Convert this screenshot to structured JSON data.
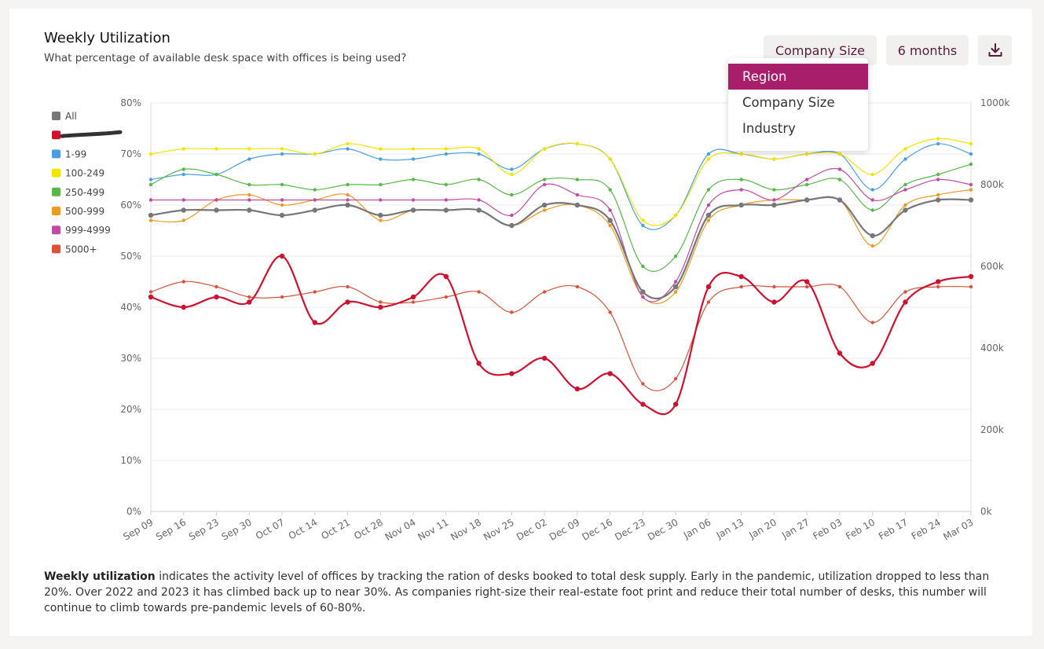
{
  "header": {
    "title": "Weekly Utilization",
    "subtitle": "What percentage of available desk space with offices is being used?"
  },
  "controls": {
    "company_size_label": "Company Size",
    "period_label": "6 months",
    "download_icon": "download-icon"
  },
  "dropdown": {
    "items": [
      {
        "label": "Region",
        "selected": true
      },
      {
        "label": "Company Size",
        "selected": false
      },
      {
        "label": "Industry",
        "selected": false
      }
    ],
    "accent_color": "#a81e6b"
  },
  "footer": {
    "bold": "Weekly utilization",
    "text": " indicates the activity level of offices by tracking the ration of desks booked to total desk supply. Early in the pandemic, utilization dropped to less than 20%. Over 2022 and 2023 it has climbed back up to near 30%. As companies right-size their real-estate foot print and reduce their total number of desks, this number will continue to climb towards pre-pandemic levels of 60-80%."
  },
  "chart_data": {
    "type": "line",
    "x": [
      "Sep 09",
      "Sep 16",
      "Sep 23",
      "Sep 30",
      "Oct 07",
      "Oct 14",
      "Oct 21",
      "Oct 28",
      "Nov 04",
      "Nov 11",
      "Nov 18",
      "Nov 25",
      "Dec 02",
      "Dec 09",
      "Dec 16",
      "Dec 23",
      "Dec 30",
      "Jan 06",
      "Jan 13",
      "Jan 20",
      "Jan 27",
      "Feb 03",
      "Feb 10",
      "Feb 17",
      "Feb 24",
      "Mar 03"
    ],
    "y_left": {
      "ticks": [
        "0%",
        "10%",
        "20%",
        "30%",
        "40%",
        "50%",
        "60%",
        "70%",
        "80%"
      ],
      "min": 0,
      "max": 80
    },
    "y_right": {
      "ticks": [
        "0k",
        "200k",
        "400k",
        "600k",
        "800k",
        "1000k"
      ],
      "min": 0,
      "max": 1000
    },
    "grid": true,
    "legend_position": "left",
    "series": [
      {
        "name": "All",
        "color": "#777777",
        "bold": true,
        "values": [
          58,
          59,
          59,
          59,
          58,
          59,
          60,
          58,
          59,
          59,
          59,
          56,
          60,
          60,
          57,
          43,
          44,
          58,
          60,
          60,
          61,
          61,
          54,
          59,
          61,
          61
        ]
      },
      {
        "name": "",
        "color": "#d0102f",
        "bold": true,
        "redacted": true,
        "values": [
          42,
          40,
          42,
          41,
          50,
          37,
          41,
          40,
          42,
          46,
          29,
          27,
          30,
          24,
          27,
          21,
          21,
          44,
          46,
          41,
          45,
          31,
          29,
          41,
          45,
          46
        ]
      },
      {
        "name": "1-99",
        "color": "#4a9fe0",
        "values": [
          65,
          66,
          66,
          69,
          70,
          70,
          71,
          69,
          69,
          70,
          70,
          67,
          71,
          72,
          69,
          56,
          58,
          70,
          70,
          69,
          70,
          70,
          63,
          69,
          72,
          70
        ]
      },
      {
        "name": "100-249",
        "color": "#f5e400",
        "values": [
          70,
          71,
          71,
          71,
          71,
          70,
          72,
          71,
          71,
          71,
          71,
          66,
          71,
          72,
          69,
          57,
          58,
          69,
          70,
          69,
          70,
          70,
          66,
          71,
          73,
          72
        ]
      },
      {
        "name": "250-499",
        "color": "#57b847",
        "values": [
          64,
          67,
          66,
          64,
          64,
          63,
          64,
          64,
          65,
          64,
          65,
          62,
          65,
          65,
          63,
          48,
          50,
          63,
          65,
          63,
          64,
          65,
          59,
          64,
          66,
          68
        ]
      },
      {
        "name": "500-999",
        "color": "#ee9a22",
        "values": [
          57,
          57,
          61,
          62,
          60,
          61,
          62,
          57,
          59,
          59,
          59,
          56,
          59,
          60,
          56,
          42,
          43,
          57,
          60,
          61,
          61,
          61,
          52,
          60,
          62,
          63
        ]
      },
      {
        "name": "999-4999",
        "color": "#c04aa8",
        "values": [
          61,
          61,
          61,
          61,
          61,
          61,
          61,
          61,
          61,
          61,
          61,
          58,
          64,
          62,
          59,
          42,
          45,
          60,
          63,
          61,
          65,
          67,
          61,
          63,
          65,
          64
        ]
      },
      {
        "name": "5000+",
        "color": "#d9533b",
        "values": [
          43,
          45,
          44,
          42,
          42,
          43,
          44,
          41,
          41,
          42,
          43,
          39,
          43,
          44,
          39,
          25,
          26,
          41,
          44,
          44,
          44,
          44,
          37,
          43,
          44,
          44
        ]
      }
    ]
  }
}
